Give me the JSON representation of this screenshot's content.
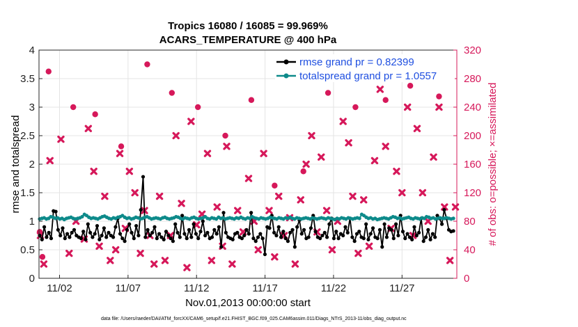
{
  "chart_data": {
    "type": "line",
    "title": "Tropics 16080 / 16085 = 99.969%",
    "subtitle": "ACARS_TEMPERATURE @ 400 hPa",
    "xlabel": "Nov.01,2013 00:00:00 start",
    "ylabel": "rmse and totalspread",
    "ylabel_right": "# of obs: o=possible; ×=assimilated",
    "footnote": "data file: /Users/raeder/DAI/ATM_forcXX/CAM6_setup/f.e21.FHIST_BGC.f09_025.CAM6assim.011/Diags_NTrS_2013-11/obs_diag_output.nc",
    "xlim": [
      0.5,
      31.0
    ],
    "ylim": [
      0,
      4
    ],
    "ylim_right": [
      0,
      320
    ],
    "x_ticks": [
      2,
      7,
      12,
      17,
      22,
      27
    ],
    "x_tick_labels": [
      "11/02",
      "11/07",
      "11/12",
      "11/17",
      "11/22",
      "11/27"
    ],
    "y_ticks": [
      0,
      0.5,
      1,
      1.5,
      2,
      2.5,
      3,
      3.5,
      4
    ],
    "y_tick_labels": [
      "0",
      "0.5",
      "1",
      "1.5",
      "2",
      "2.5",
      "3",
      "3.5",
      "4"
    ],
    "y_right_ticks": [
      0,
      40,
      80,
      120,
      160,
      200,
      240,
      280,
      320
    ],
    "y_right_tick_labels": [
      "0",
      "40",
      "80",
      "120",
      "160",
      "200",
      "240",
      "280",
      "320"
    ],
    "grid": true,
    "legend_position": "top-right",
    "series": [
      {
        "name": "rmse grand pr = 0.82399",
        "color": "#000000",
        "marker": "circle",
        "values": [
          0.75,
          0.68,
          0.9,
          0.72,
          0.8,
          0.7,
          1.18,
          1.17,
          0.85,
          0.75,
          0.88,
          0.7,
          0.78,
          0.72,
          0.8,
          0.85,
          0.75,
          0.72,
          0.7,
          0.82,
          0.68,
          0.95,
          0.8,
          0.72,
          0.78,
          0.92,
          0.68,
          0.75,
          0.88,
          0.72,
          0.8,
          0.75,
          0.72,
          0.9,
          1.05,
          0.78,
          0.7,
          0.65,
          0.85,
          0.95,
          0.8,
          0.7,
          0.92,
          0.75,
          1.2,
          1.78,
          0.72,
          0.85,
          0.75,
          0.8,
          0.9,
          0.7,
          0.78,
          0.72,
          0.68,
          0.82,
          0.75,
          0.7,
          0.65,
          0.95,
          0.8,
          0.72,
          1.1,
          0.78,
          0.7,
          0.85,
          0.72,
          0.95,
          0.78,
          0.7,
          0.82,
          1.0,
          0.75,
          0.8,
          0.7,
          0.72,
          0.85,
          0.78,
          0.9,
          0.55,
          1.15,
          0.8,
          0.72,
          0.7,
          0.68,
          0.78,
          0.8,
          0.72,
          0.7,
          0.75,
          0.85,
          0.78,
          1.15,
          0.7,
          0.65,
          0.72,
          0.78,
          0.7,
          0.42,
          0.9,
          0.88,
          1.1,
          0.8,
          0.75,
          0.9,
          0.72,
          0.82,
          0.7,
          0.65,
          0.8,
          0.85,
          0.55,
          0.9,
          1.02,
          0.78,
          0.85,
          0.7,
          0.72,
          0.88,
          1.1,
          0.82,
          0.72,
          0.7,
          0.75,
          0.8,
          0.72,
          0.95,
          1.05,
          0.7,
          0.82,
          0.7,
          0.78,
          0.75,
          0.9,
          0.8,
          1.05,
          0.72,
          0.65,
          0.78,
          0.82,
          0.72,
          0.7,
          0.95,
          0.68,
          0.78,
          0.88,
          0.72,
          0.7,
          0.85,
          0.55,
          0.95,
          0.72,
          0.88,
          0.85,
          0.7,
          0.95,
          0.75,
          1.1,
          0.82,
          0.7,
          0.78,
          0.72,
          0.68,
          0.9,
          0.75,
          0.8,
          1.05,
          0.65,
          0.72,
          0.85,
          0.68,
          0.78,
          0.72,
          1.1,
          1.05,
          0.95,
          1.2,
          1.05,
          0.85,
          0.82,
          0.83
        ]
      },
      {
        "name": "totalspread grand pr = 1.0557",
        "color": "#0d8a8a",
        "marker": "circle",
        "values": [
          1.04,
          1.05,
          1.06,
          1.04,
          1.05,
          1.08,
          1.07,
          1.05,
          1.06,
          1.04,
          1.05,
          1.03,
          1.05,
          1.06,
          1.07,
          1.05,
          1.04,
          1.05,
          1.06,
          1.08,
          1.12,
          1.1,
          1.07,
          1.05,
          1.06,
          1.05,
          1.04,
          1.06,
          1.08,
          1.09,
          1.07,
          1.05,
          1.04,
          1.06,
          1.05,
          1.07,
          1.08,
          1.1,
          1.07,
          1.05,
          1.06,
          1.04,
          1.05,
          1.07,
          1.06,
          1.04,
          1.05,
          1.07,
          1.08,
          1.06,
          1.04,
          1.05,
          1.06,
          1.05,
          1.04,
          1.06,
          1.07,
          1.05,
          1.04,
          1.05,
          1.06,
          1.08,
          1.07,
          1.05,
          1.04,
          1.06,
          1.05,
          1.04,
          1.06,
          1.07,
          1.05,
          1.04,
          1.05,
          1.06,
          1.08,
          1.05,
          1.04,
          1.06,
          1.05,
          1.04,
          1.07,
          1.05,
          1.06,
          1.04,
          1.05,
          1.06,
          1.05,
          1.04,
          1.06,
          1.05,
          1.07,
          1.05,
          1.04,
          1.06,
          1.05,
          1.08,
          1.06,
          1.05,
          1.04,
          1.06,
          1.05,
          1.04,
          1.05,
          1.07,
          1.06,
          1.05,
          1.04,
          1.06,
          1.05,
          1.04,
          1.06,
          1.05,
          1.07,
          1.05,
          1.04,
          1.06,
          1.05,
          1.04,
          1.05,
          1.06,
          1.05,
          1.04,
          1.06,
          1.05,
          1.04,
          1.05,
          1.06,
          1.05,
          1.04,
          1.06,
          1.05,
          1.04,
          1.03,
          1.05,
          1.04,
          1.06,
          1.05,
          1.04,
          1.06,
          1.05,
          1.04,
          1.05,
          1.06,
          1.05,
          1.12,
          1.1,
          1.07,
          1.05,
          1.06,
          1.04,
          1.05,
          1.03,
          1.04,
          1.05,
          1.06,
          1.05,
          1.04,
          1.06,
          1.08,
          1.07,
          1.05,
          1.06,
          1.04,
          1.05,
          1.06,
          1.07,
          1.05,
          1.04,
          1.06,
          1.05,
          1.04,
          1.06,
          1.05,
          1.08,
          1.07,
          1.05,
          1.06,
          1.04,
          1.05,
          1.06,
          1.05,
          1.05,
          1.06,
          1.05,
          1.04,
          1.05
        ]
      }
    ],
    "obs_possible": {
      "name": "possible",
      "color": "#d6185a",
      "marker": "circle",
      "x": [
        0.55,
        0.75,
        1.2,
        3.0,
        4.6,
        6.5,
        8.4,
        10.2,
        12.1,
        14.1,
        16.0,
        17.7,
        19.8,
        21.6,
        23.6,
        25.8,
        27.6,
        29.7
      ],
      "y": [
        65,
        30,
        290,
        240,
        230,
        185,
        300,
        260,
        240,
        200,
        250,
        130,
        150,
        260,
        240,
        250,
        270,
        255
      ]
    },
    "obs_assimilated": {
      "name": "assimilated",
      "color": "#d6185a",
      "marker": "x",
      "x": [
        0.6,
        0.85,
        1.3,
        2.1,
        2.7,
        3.2,
        3.8,
        4.1,
        4.5,
        4.9,
        5.3,
        5.7,
        6.1,
        6.4,
        6.8,
        7.1,
        7.5,
        7.9,
        8.2,
        8.6,
        8.9,
        9.3,
        9.7,
        10.1,
        10.5,
        10.9,
        11.3,
        11.6,
        12.0,
        12.4,
        12.8,
        13.1,
        13.5,
        13.9,
        14.2,
        14.6,
        15.0,
        15.4,
        15.8,
        16.2,
        16.5,
        16.9,
        17.3,
        17.7,
        18.0,
        18.4,
        18.8,
        19.2,
        19.6,
        20.0,
        20.4,
        20.8,
        21.1,
        21.5,
        21.9,
        22.3,
        22.7,
        23.1,
        23.4,
        23.8,
        24.2,
        24.6,
        25.0,
        25.4,
        25.8,
        26.2,
        26.6,
        27.0,
        27.4,
        27.8,
        28.1,
        28.5,
        28.9,
        29.3,
        29.7,
        30.1,
        30.5,
        30.9
      ],
      "y": [
        60,
        20,
        165,
        195,
        35,
        80,
        55,
        210,
        150,
        45,
        115,
        25,
        40,
        175,
        70,
        150,
        120,
        35,
        95,
        60,
        20,
        115,
        25,
        60,
        200,
        105,
        15,
        220,
        75,
        90,
        175,
        25,
        100,
        45,
        185,
        20,
        95,
        65,
        140,
        80,
        40,
        175,
        95,
        30,
        115,
        60,
        85,
        20,
        110,
        160,
        200,
        65,
        170,
        95,
        40,
        80,
        220,
        190,
        115,
        35,
        110,
        45,
        165,
        265,
        185,
        70,
        150,
        120,
        240,
        60,
        210,
        120,
        80,
        170,
        240,
        100,
        25,
        100
      ]
    },
    "legend": [
      "rmse grand pr = 0.82399",
      "totalspread grand pr = 1.0557"
    ]
  }
}
